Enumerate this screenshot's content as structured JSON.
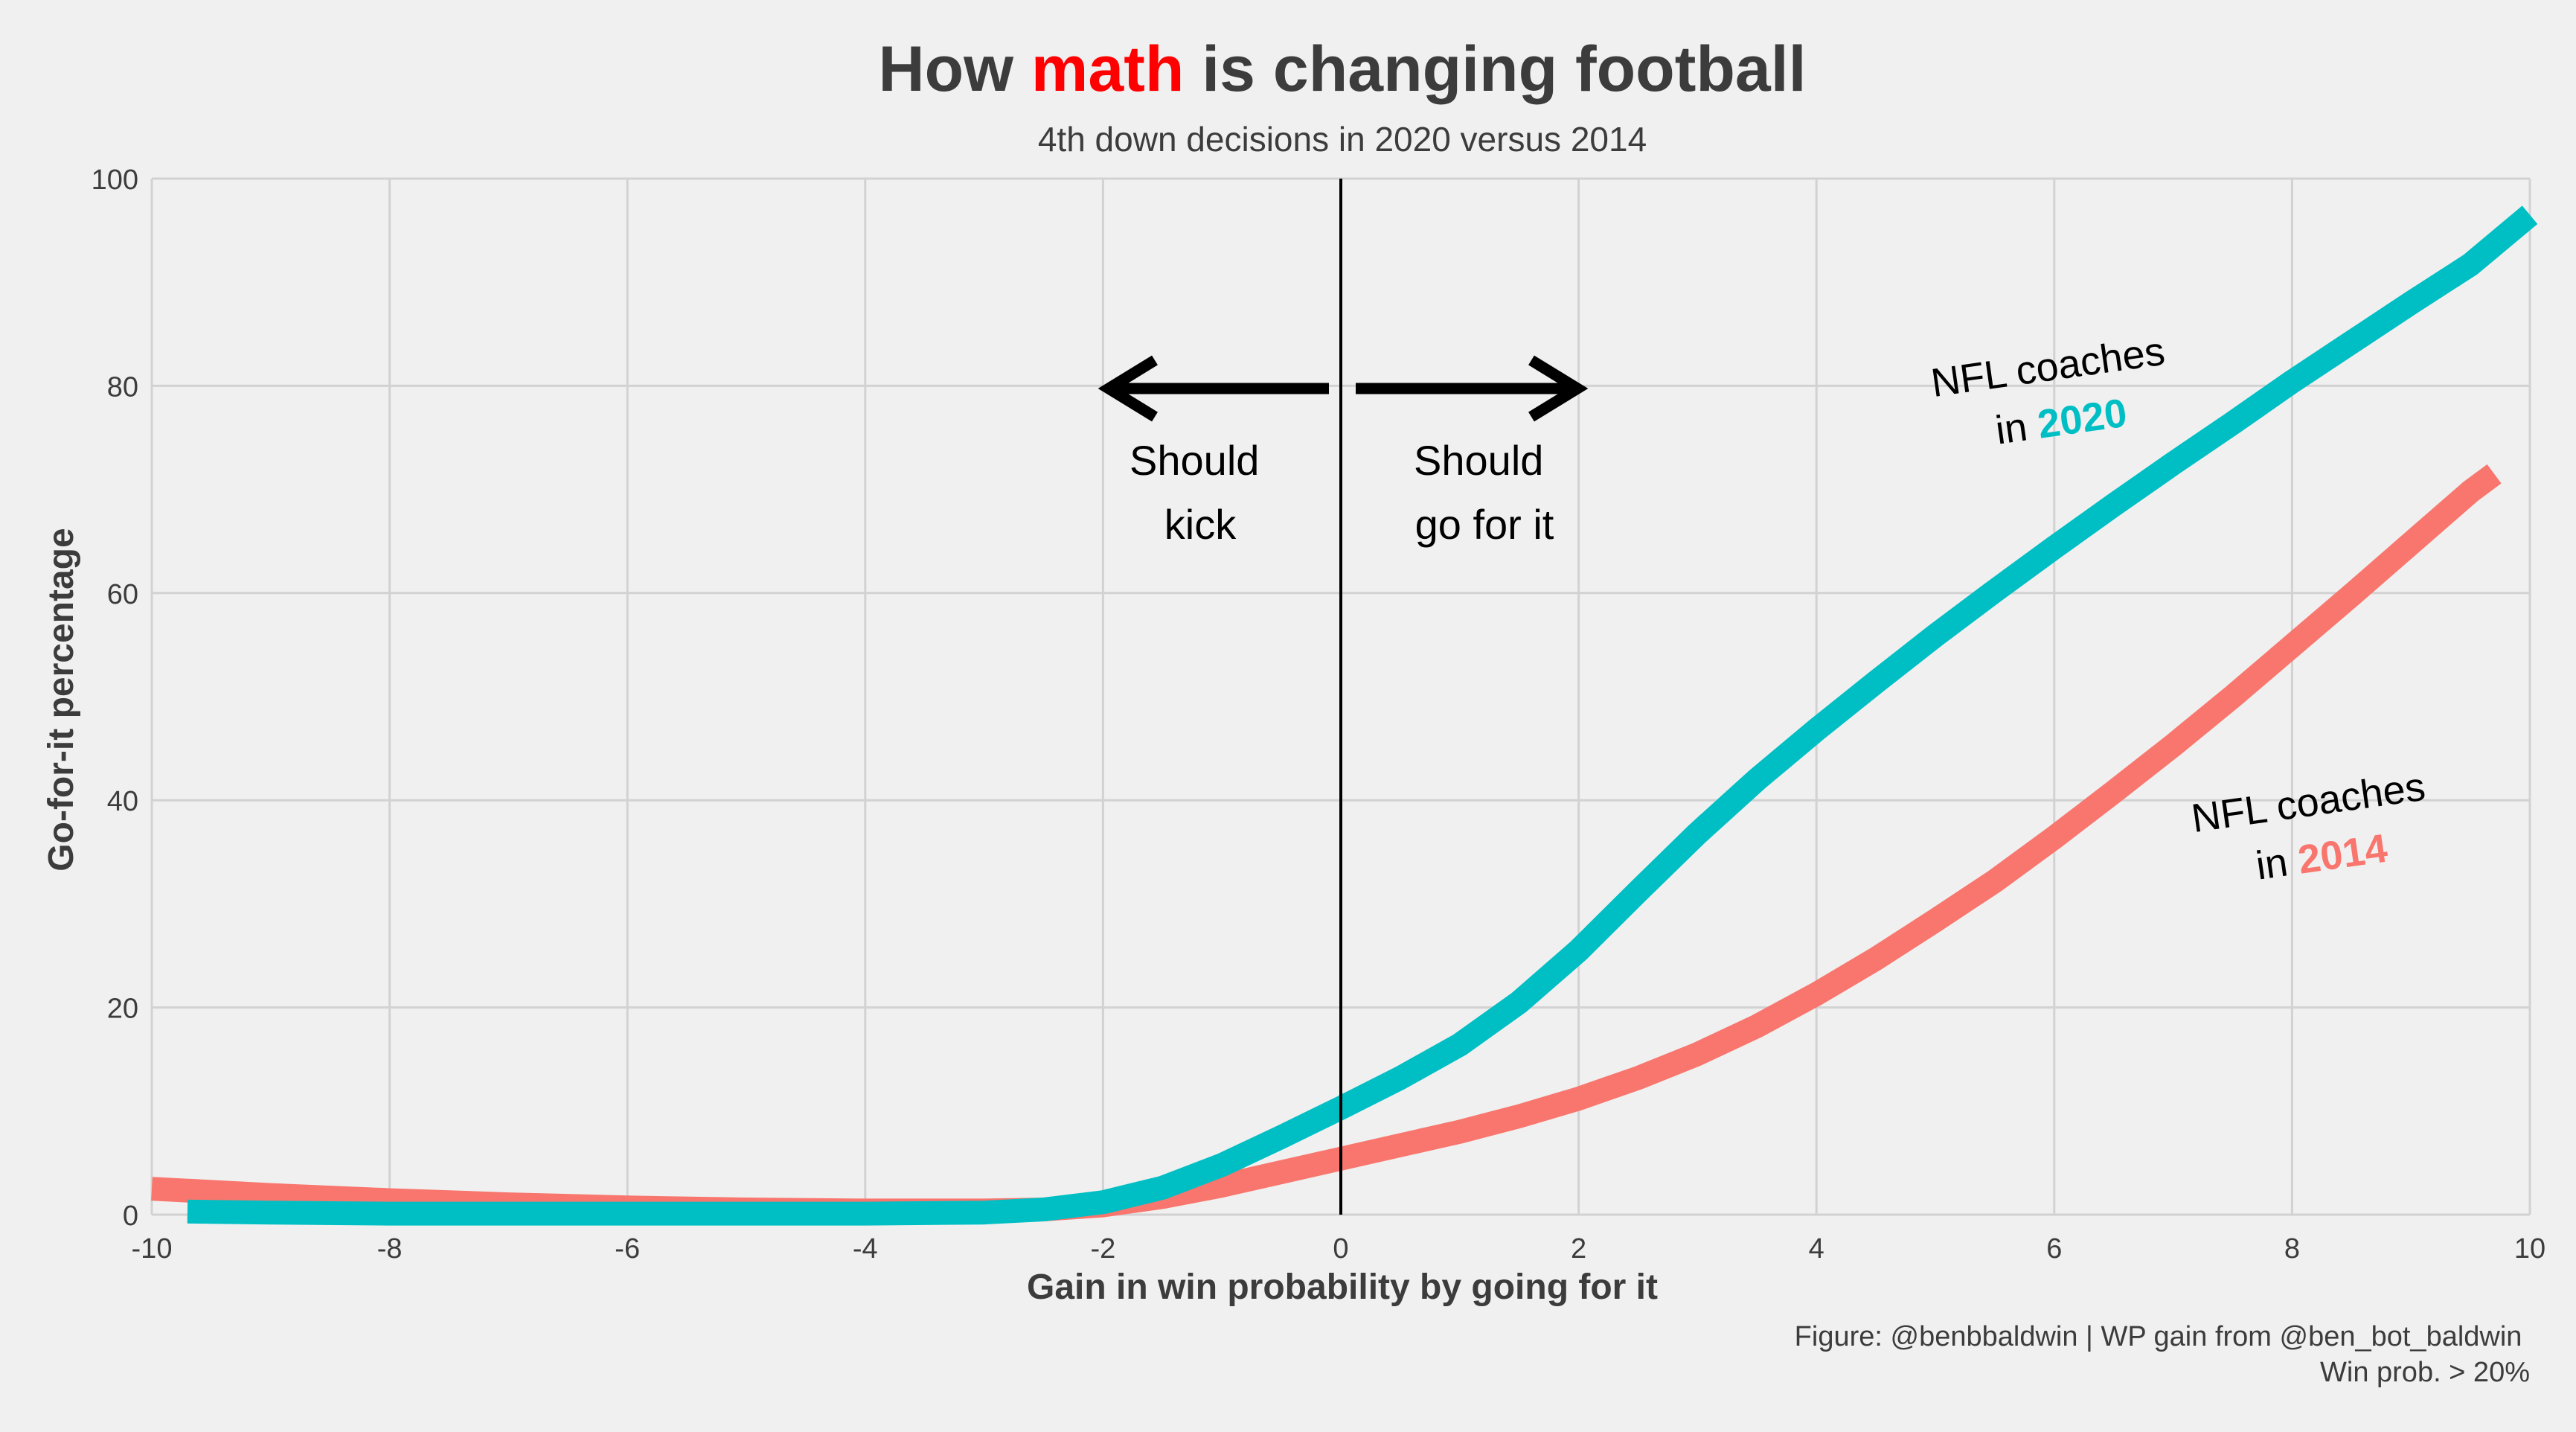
{
  "chart_data": {
    "type": "line",
    "title": {
      "prefix": "How ",
      "highlight": "math",
      "suffix": " is changing football"
    },
    "subtitle": "4th down decisions in 2020 versus 2014",
    "xlabel": "Gain in win probability by going for it",
    "ylabel": "Go-for-it percentage",
    "xlim": [
      -10,
      10
    ],
    "ylim": [
      0,
      100
    ],
    "x_ticks": [
      -10,
      -8,
      -6,
      -4,
      -2,
      0,
      2,
      4,
      6,
      8,
      10
    ],
    "y_ticks": [
      0,
      20,
      40,
      60,
      80,
      100
    ],
    "grid": true,
    "series": [
      {
        "key": "2014",
        "color": "#F8766D",
        "x": [
          -10,
          -9,
          -8,
          -7,
          -6,
          -5,
          -4,
          -3,
          -2.5,
          -2,
          -1.5,
          -1,
          -0.5,
          0,
          0.5,
          1,
          1.5,
          2,
          2.5,
          3,
          3.5,
          4,
          4.5,
          5,
          5.5,
          6,
          6.5,
          7,
          7.5,
          8,
          8.5,
          9,
          9.5,
          9.7
        ],
        "y": [
          2.5,
          1.9,
          1.4,
          1.0,
          0.7,
          0.5,
          0.4,
          0.4,
          0.5,
          0.9,
          1.7,
          2.8,
          4.1,
          5.4,
          6.7,
          8.0,
          9.5,
          11.2,
          13.2,
          15.5,
          18.2,
          21.3,
          24.7,
          28.4,
          32.2,
          36.4,
          40.8,
          45.3,
          50.0,
          54.9,
          59.8,
          64.8,
          69.8,
          71.5
        ]
      },
      {
        "key": "2020",
        "color": "#00BFC4",
        "x": [
          -9.7,
          -9,
          -8,
          -7,
          -6,
          -5,
          -4,
          -3,
          -2.5,
          -2,
          -1.5,
          -1,
          -0.5,
          0,
          0.5,
          1,
          1.5,
          2,
          2.5,
          3,
          3.5,
          4,
          4.5,
          5,
          5.5,
          6,
          6.5,
          7,
          7.5,
          8,
          8.5,
          9,
          9.5,
          10
        ],
        "y": [
          0.3,
          0.2,
          0.1,
          0.1,
          0.1,
          0.1,
          0.1,
          0.2,
          0.5,
          1.2,
          2.6,
          4.8,
          7.5,
          10.3,
          13.2,
          16.4,
          20.5,
          25.5,
          31.2,
          36.8,
          42.0,
          46.8,
          51.4,
          55.9,
          60.2,
          64.4,
          68.5,
          72.5,
          76.4,
          80.4,
          84.2,
          88.0,
          91.7,
          96.5
        ]
      }
    ],
    "annotations": {
      "kick_lines": [
        "Should",
        "kick"
      ],
      "go_lines": [
        "Should",
        "go for it"
      ],
      "label_2020": {
        "prefix": "NFL coaches",
        "in": "in ",
        "year": "2020"
      },
      "label_2014": {
        "prefix": "NFL coaches",
        "in": "in ",
        "year": "2014"
      }
    },
    "caption": [
      "Figure: @benbbaldwin | WP gain from @ben_bot_baldwin",
      "Win prob. > 20%"
    ]
  },
  "colors": {
    "background": "#F0F0F0",
    "grid": "#D2D2D2",
    "title_text": "#3C3C3C",
    "title_highlight": "#FF0000",
    "teal": "#00BFC4",
    "salmon": "#F8766D",
    "annotation": "#000000"
  }
}
